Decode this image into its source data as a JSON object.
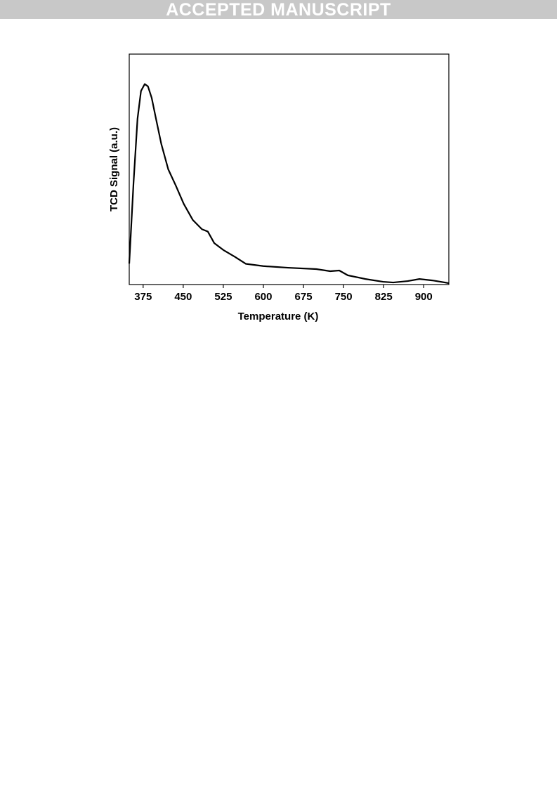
{
  "banner": "ACCEPTED MANUSCRIPT",
  "chart_data": {
    "type": "line",
    "xlabel": "Temperature (K)",
    "ylabel": "TCD Signal (a.u.)",
    "xlim": [
      349,
      947
    ],
    "xticks": [
      375,
      450,
      525,
      600,
      675,
      750,
      825,
      900
    ],
    "ylim": [
      0,
      100
    ],
    "series": [
      {
        "name": "TCD signal",
        "color": "#000000",
        "x": [
          349,
          357,
          364.5,
          371,
          378,
          384,
          391,
          399,
          409,
          422,
          436,
          451,
          468,
          485,
          496,
          508,
          525,
          547,
          567,
          600,
          646,
          699,
          725,
          742,
          758,
          791,
          824,
          843,
          870,
          892,
          916,
          947
        ],
        "values": [
          9.1,
          44,
          72,
          84,
          87,
          86,
          81,
          72,
          61,
          50,
          43,
          35,
          28,
          24,
          23,
          18,
          15,
          12,
          9,
          8,
          7.3,
          6.7,
          5.8,
          6.1,
          4,
          2.4,
          1.2,
          0.9,
          1.5,
          2.4,
          1.8,
          0.6
        ]
      }
    ]
  }
}
